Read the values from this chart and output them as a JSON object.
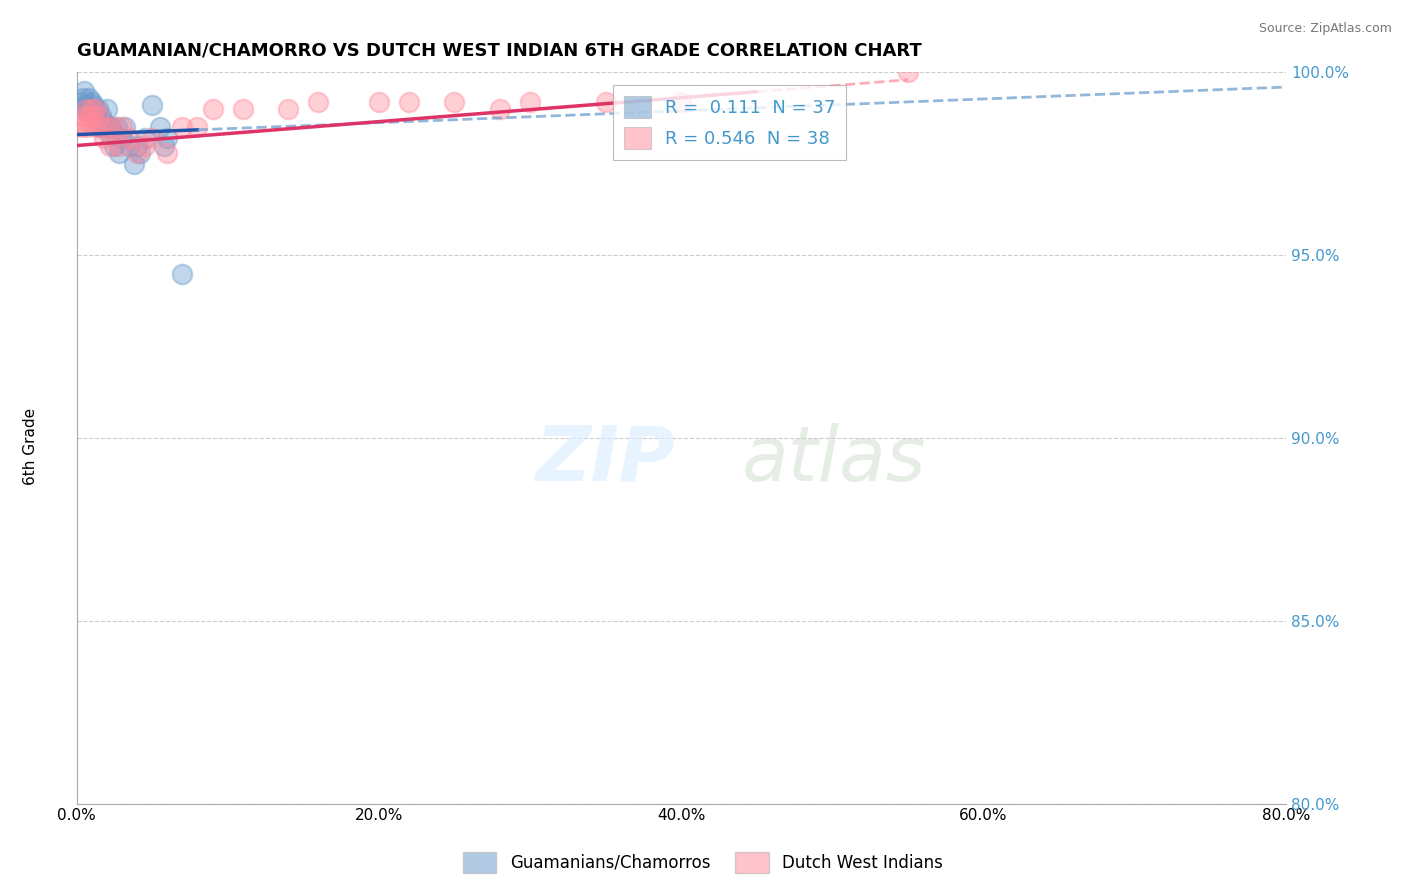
{
  "title": "GUAMANIAN/CHAMORRO VS DUTCH WEST INDIAN 6TH GRADE CORRELATION CHART",
  "source": "Source: ZipAtlas.com",
  "xlabel_bottom": "Guamanians/Chamorros",
  "xlabel_bottom2": "Dutch West Indians",
  "ylabel": "6th Grade",
  "xlim": [
    0.0,
    80.0
  ],
  "ylim": [
    80.0,
    100.0
  ],
  "xticks": [
    0.0,
    20.0,
    40.0,
    60.0,
    80.0
  ],
  "yticks": [
    80.0,
    85.0,
    90.0,
    95.0,
    100.0
  ],
  "blue_color": "#6699CC",
  "pink_color": "#FF8899",
  "blue_R": 0.111,
  "blue_N": 37,
  "pink_R": 0.546,
  "pink_N": 38,
  "blue_points_x": [
    0.2,
    0.3,
    0.4,
    0.5,
    0.6,
    0.7,
    0.8,
    0.9,
    1.0,
    1.1,
    1.2,
    1.3,
    1.4,
    1.5,
    1.6,
    1.7,
    1.8,
    1.9,
    2.0,
    2.1,
    2.2,
    2.3,
    2.5,
    2.7,
    3.0,
    3.2,
    3.5,
    4.0,
    4.2,
    4.5,
    5.0,
    5.5,
    6.0,
    3.8,
    5.8,
    2.8,
    7.0
  ],
  "blue_points_y": [
    99.2,
    99.0,
    99.3,
    99.5,
    99.1,
    99.0,
    99.3,
    99.0,
    99.2,
    99.1,
    99.0,
    98.8,
    99.0,
    98.5,
    98.8,
    98.7,
    98.5,
    98.6,
    99.0,
    98.5,
    98.3,
    98.5,
    98.0,
    98.5,
    98.2,
    98.5,
    98.0,
    98.0,
    97.8,
    98.2,
    99.1,
    98.5,
    98.2,
    97.5,
    98.0,
    97.8,
    94.5
  ],
  "pink_points_x": [
    0.3,
    0.4,
    0.5,
    0.6,
    0.7,
    0.8,
    0.9,
    1.0,
    1.1,
    1.2,
    1.3,
    1.5,
    1.6,
    1.8,
    2.0,
    2.2,
    2.5,
    2.8,
    3.0,
    3.5,
    4.0,
    4.5,
    5.0,
    6.0,
    7.0,
    8.0,
    9.0,
    11.0,
    14.0,
    16.0,
    20.0,
    22.0,
    25.0,
    28.0,
    30.0,
    35.0,
    40.0,
    55.0
  ],
  "pink_points_y": [
    98.5,
    98.8,
    98.6,
    99.0,
    98.5,
    98.8,
    98.6,
    99.0,
    98.8,
    99.0,
    98.5,
    98.8,
    98.5,
    98.2,
    98.5,
    98.0,
    98.5,
    98.0,
    98.5,
    98.2,
    97.8,
    98.0,
    98.2,
    97.8,
    98.5,
    98.5,
    99.0,
    99.0,
    99.0,
    99.2,
    99.2,
    99.2,
    99.2,
    99.0,
    99.2,
    99.2,
    99.2,
    100.0
  ],
  "blue_line_x0": 0.0,
  "blue_line_y0": 98.3,
  "blue_line_x1": 80.0,
  "blue_line_y1": 99.6,
  "pink_line_x0": 0.0,
  "pink_line_y0": 98.0,
  "pink_line_x1": 55.0,
  "pink_line_y1": 99.8,
  "blue_solid_end": 8.0,
  "pink_solid_end": 45.0,
  "watermark_zip": "ZIP",
  "watermark_atlas": "atlas",
  "background_color": "#ffffff",
  "grid_color": "#cccccc",
  "tick_color": "#4499CC"
}
